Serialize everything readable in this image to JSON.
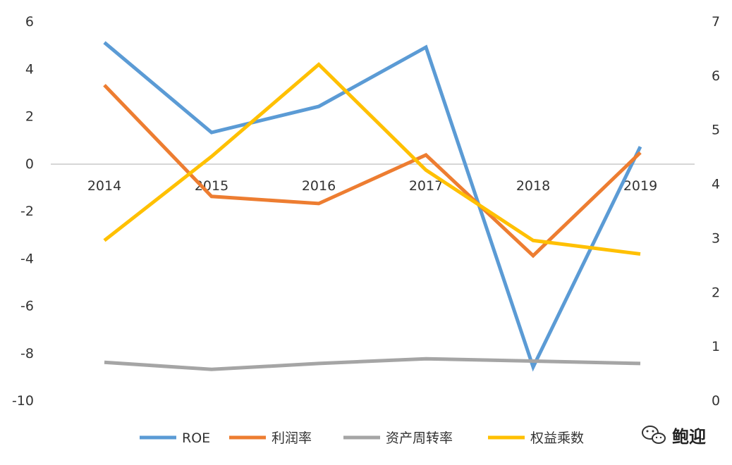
{
  "chart_data": {
    "type": "line",
    "categories": [
      "2014",
      "2015",
      "2016",
      "2017",
      "2018",
      "2019"
    ],
    "left_axis": {
      "ylim": [
        -10,
        6
      ],
      "ticks": [
        "6",
        "4",
        "2",
        "0",
        "-2",
        "-4",
        "-6",
        "-8",
        "-10"
      ],
      "tick_values": [
        6,
        4,
        2,
        0,
        -2,
        -4,
        -6,
        -8,
        -10
      ]
    },
    "right_axis": {
      "ylim": [
        0,
        7
      ],
      "ticks": [
        "7",
        "6",
        "5",
        "4",
        "3",
        "2",
        "1",
        "0"
      ],
      "tick_values": [
        7,
        6,
        5,
        4,
        3,
        2,
        1,
        0
      ]
    },
    "series": [
      {
        "name": "ROE",
        "axis": "left",
        "color": "#5b9bd5",
        "values": [
          5.1,
          1.3,
          2.4,
          4.9,
          -8.6,
          0.7
        ]
      },
      {
        "name": "利润率",
        "axis": "left",
        "color": "#ed7d31",
        "values": [
          3.3,
          -1.4,
          -1.7,
          0.35,
          -3.9,
          0.45
        ]
      },
      {
        "name": "资产周转率",
        "axis": "left",
        "color": "#a5a5a5",
        "values": [
          -8.4,
          -8.7,
          -8.45,
          -8.25,
          -8.35,
          -8.45
        ]
      },
      {
        "name": "权益乘数",
        "axis": "right",
        "color": "#ffc000",
        "values": [
          2.95,
          4.5,
          6.2,
          4.25,
          2.95,
          2.7
        ]
      }
    ],
    "grid": false,
    "legend_position": "bottom"
  },
  "watermark": {
    "text": "鲍迎",
    "icon": "wechat-icon"
  }
}
